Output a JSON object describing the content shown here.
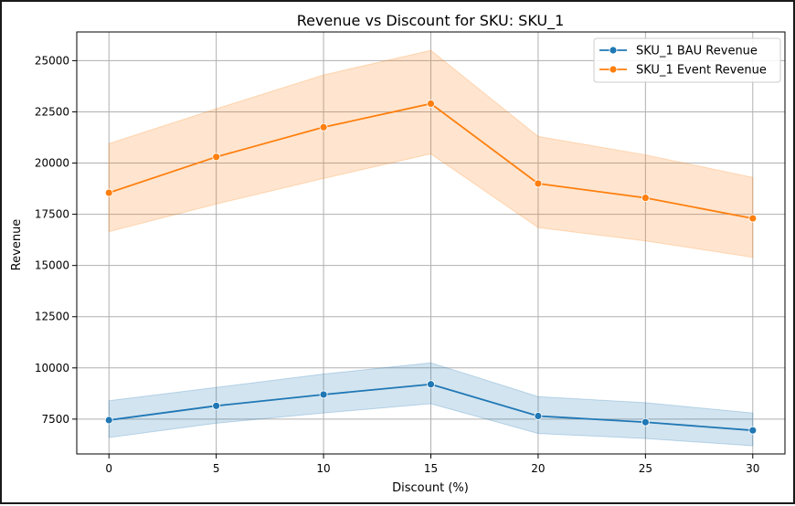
{
  "chart_data": {
    "type": "line",
    "title": "Revenue vs Discount for SKU: SKU_1",
    "xlabel": "Discount (%)",
    "ylabel": "Revenue",
    "x": [
      0,
      5,
      10,
      15,
      20,
      25,
      30
    ],
    "x_ticks": [
      0,
      5,
      10,
      15,
      20,
      25,
      30
    ],
    "y_ticks": [
      7500,
      10000,
      12500,
      15000,
      17500,
      20000,
      22500,
      25000
    ],
    "xlim": [
      -1.5,
      31.5
    ],
    "ylim": [
      5800,
      26400
    ],
    "grid": true,
    "legend_position": "top-right",
    "series": [
      {
        "name": "SKU_1 BAU Revenue",
        "color": "#1f77b4",
        "values": [
          7450,
          8150,
          8700,
          9200,
          7650,
          7350,
          6950
        ],
        "band_low": [
          6600,
          7300,
          7800,
          8250,
          6800,
          6550,
          6200
        ],
        "band_high": [
          8400,
          9050,
          9700,
          10250,
          8600,
          8300,
          7800
        ]
      },
      {
        "name": "SKU_1 Event Revenue",
        "color": "#ff7f0e",
        "values": [
          18550,
          20300,
          21750,
          22900,
          19000,
          18300,
          17300
        ],
        "band_low": [
          16650,
          18000,
          19250,
          20450,
          16850,
          16200,
          15400
        ],
        "band_high": [
          20950,
          22650,
          24300,
          25500,
          21300,
          20400,
          19300
        ]
      }
    ]
  }
}
